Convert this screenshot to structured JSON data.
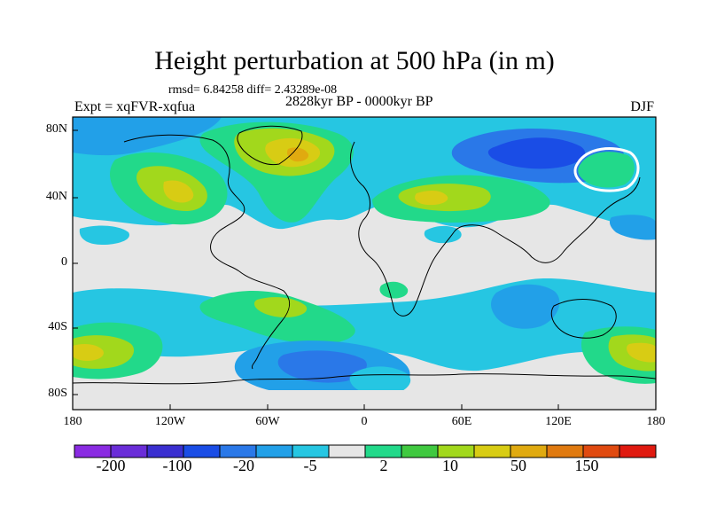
{
  "title": "Height perturbation at 500 hPa (in m)",
  "stats": "rmsd= 6.84258 diff= 2.43289e-08",
  "period": "2828kyr BP - 0000kyr BP",
  "experiment": "Expt = xqFVR-xqfua",
  "season": "DJF",
  "lat_labels": [
    "80N",
    "40N",
    "0",
    "40S",
    "80S"
  ],
  "lon_labels": [
    "180",
    "120W",
    "60W",
    "0",
    "60E",
    "120E",
    "180"
  ],
  "colorbar": {
    "labels": [
      "-200",
      "-100",
      "-20",
      "-5",
      "2",
      "10",
      "50",
      "150"
    ],
    "colors": [
      "#8a2be2",
      "#6a2dd8",
      "#3a2fd0",
      "#1a4de6",
      "#2a78e8",
      "#22a0e8",
      "#26c6e2",
      "#e6e6e6",
      "#22d98a",
      "#40c940",
      "#a2d81c",
      "#d8cc14",
      "#e0aa10",
      "#e07a10",
      "#e04a10",
      "#e01a10"
    ]
  },
  "field_colors": {
    "background": "#e6e6e6",
    "light_blue": "#26c6e2",
    "blue": "#22a0e8",
    "dark_blue": "#2a78e8",
    "deep_blue": "#1a4de6",
    "light_green": "#22d98a",
    "green": "#40c940",
    "yellow_green": "#a2d81c",
    "yellow": "#d8cc14",
    "orange": "#e0aa10"
  }
}
